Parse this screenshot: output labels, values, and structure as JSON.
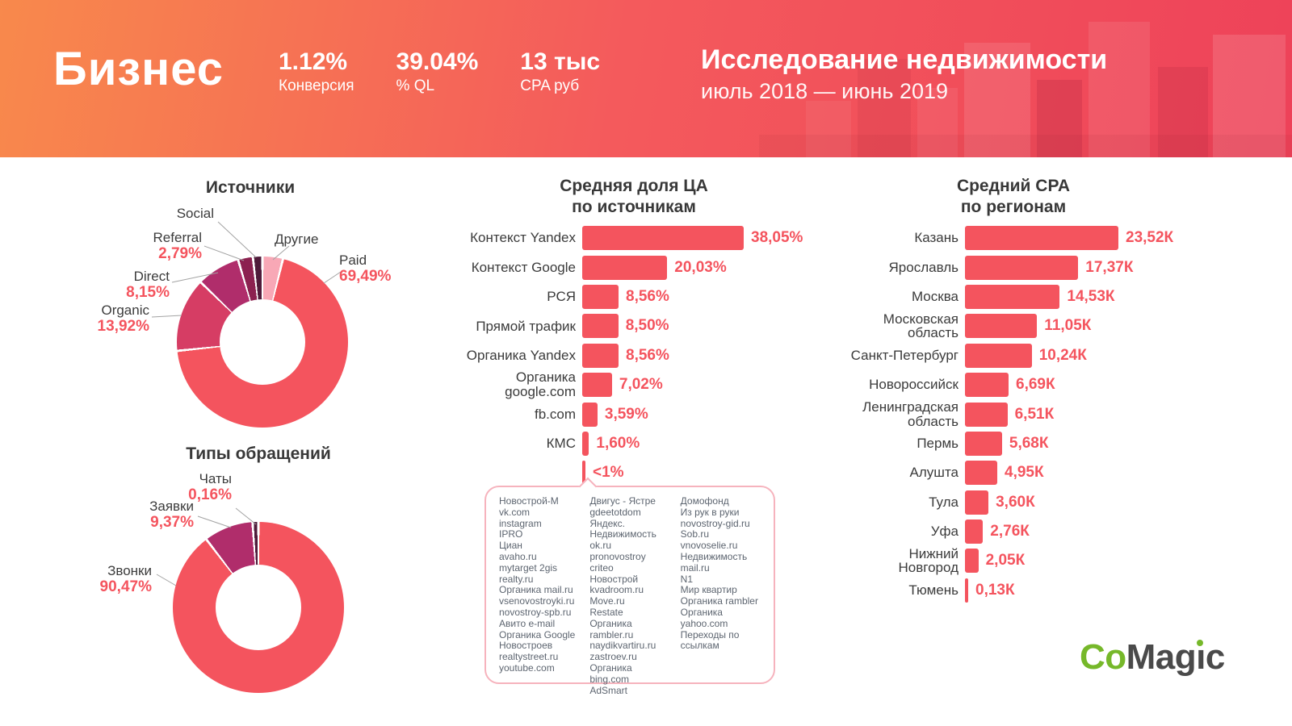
{
  "header": {
    "title": "Бизнес",
    "stats": [
      {
        "value": "1.12%",
        "label": "Конверсия"
      },
      {
        "value": "39.04%",
        "label": "% QL"
      },
      {
        "value": "13 тыс",
        "label": "CPA руб"
      }
    ],
    "report_title": "Исследование недвижимости",
    "report_period": "июль 2018 — июнь 2019"
  },
  "colors": {
    "coral": "#f4545e",
    "crimson": "#d63d64",
    "magenta": "#b02d6b",
    "maroon": "#8c2150",
    "dark_plum": "#4f1b3a",
    "pink": "#f8a8b6",
    "header_orange": "#f8894c",
    "header_red": "#ee4259",
    "logo_green": "#76b82a"
  },
  "chart_data": [
    {
      "type": "pie",
      "title": "Источники",
      "segments": [
        {
          "label": "Другие",
          "value": 3.86,
          "display": "",
          "color": "#f8a8b6"
        },
        {
          "label": "Paid",
          "value": 69.49,
          "display": "69,49%",
          "color": "#f4545e"
        },
        {
          "label": "Organic",
          "value": 13.92,
          "display": "13,92%",
          "color": "#d63d64"
        },
        {
          "label": "Direct",
          "value": 8.15,
          "display": "8,15%",
          "color": "#b02d6b"
        },
        {
          "label": "Referral",
          "value": 2.79,
          "display": "2,79%",
          "color": "#8c2150"
        },
        {
          "label": "Social",
          "value": 1.79,
          "display": "",
          "color": "#4f1b3a"
        }
      ]
    },
    {
      "type": "pie",
      "title": "Типы обращений",
      "segments": [
        {
          "label": "Звонки",
          "value": 90.47,
          "display": "90,47%",
          "color": "#f4545e"
        },
        {
          "label": "Заявки",
          "value": 9.37,
          "display": "9,37%",
          "color": "#b02d6b"
        },
        {
          "label": "Чаты",
          "value": 0.16,
          "display": "0,16%",
          "color": "#4f1b3a"
        }
      ]
    },
    {
      "type": "bar",
      "title": "Средняя доля ЦА\nпо источникам",
      "unit": "%",
      "items": [
        {
          "label": "Контекст Yandex",
          "value": 38.05,
          "display": "38,05%"
        },
        {
          "label": "Контекст Google",
          "value": 20.03,
          "display": "20,03%"
        },
        {
          "label": "РСЯ",
          "value": 8.56,
          "display": "8,56%"
        },
        {
          "label": "Прямой трафик",
          "value": 8.5,
          "display": "8,50%"
        },
        {
          "label": "Органика Yandex",
          "value": 8.56,
          "display": "8,56%"
        },
        {
          "label": "Органика\ngoogle.com",
          "value": 7.02,
          "display": "7,02%"
        },
        {
          "label": "fb.com",
          "value": 3.59,
          "display": "3,59%"
        },
        {
          "label": "КМС",
          "value": 1.6,
          "display": "1,60%"
        },
        {
          "label": "",
          "value": 0.5,
          "display": "<1%"
        }
      ]
    },
    {
      "type": "bar",
      "title": "Средний CPA\nпо регионам",
      "unit": "К",
      "items": [
        {
          "label": "Казань",
          "value": 23.52,
          "display": "23,52К"
        },
        {
          "label": "Ярославль",
          "value": 17.37,
          "display": "17,37К"
        },
        {
          "label": "Москва",
          "value": 14.53,
          "display": "14,53К"
        },
        {
          "label": "Московская\nобласть",
          "value": 11.05,
          "display": "11,05К"
        },
        {
          "label": "Санкт-Петербург",
          "value": 10.24,
          "display": "10,24К"
        },
        {
          "label": "Новороссийск",
          "value": 6.69,
          "display": "6,69К"
        },
        {
          "label": "Ленинградская\nобласть",
          "value": 6.51,
          "display": "6,51К"
        },
        {
          "label": "Пермь",
          "value": 5.68,
          "display": "5,68К"
        },
        {
          "label": "Алушта",
          "value": 4.95,
          "display": "4,95К"
        },
        {
          "label": "Тула",
          "value": 3.6,
          "display": "3,60К"
        },
        {
          "label": "Уфа",
          "value": 2.76,
          "display": "2,76К"
        },
        {
          "label": "Нижний\nНовгород",
          "value": 2.05,
          "display": "2,05К"
        },
        {
          "label": "Тюмень",
          "value": 0.13,
          "display": "0,13К"
        }
      ]
    }
  ],
  "other_sources": {
    "columns": [
      [
        "Новострой-М",
        "vk.com",
        "instagram",
        "IPRO",
        "Циан",
        "avaho.ru",
        "mytarget 2gis",
        "realty.ru",
        "Органика mail.ru",
        "vsenovostroyki.ru",
        "novostroy-spb.ru",
        "Авито e-mail",
        "Органика Google",
        "Новостроев",
        "realtystreet.ru",
        "youtube.com"
      ],
      [
        "Двигус - Ястре",
        "gdeetotdom",
        "Яндекс. Недвижимость",
        "ok.ru",
        "pronovostroy",
        "criteo",
        "Новострой",
        "kvadroom.ru",
        "Move.ru",
        "Restate",
        "Органика rambler.ru",
        "naydikvartiru.ru",
        "zastroev.ru",
        "Органика bing.com",
        "AdSmart"
      ],
      [
        "Домофонд",
        "Из рук в руки",
        "novostroy-gid.ru",
        "Sob.ru",
        "vnovoselie.ru",
        "Недвижимость",
        "mail.ru",
        "N1",
        "Мир квартир",
        "Органика rambler",
        "Органика yahoo.com",
        "Переходы по ссылкам"
      ]
    ]
  },
  "logo": {
    "part_co": "Co",
    "part_mag": "Mag",
    "part_i": "ı",
    "part_c": "c"
  }
}
